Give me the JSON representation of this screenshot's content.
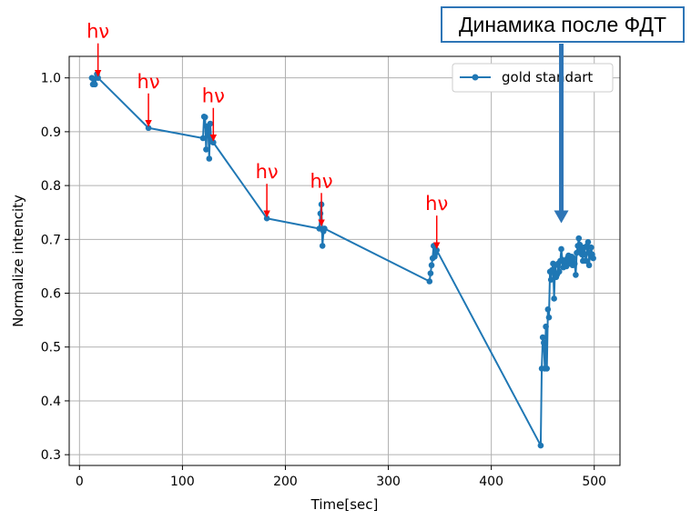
{
  "callout": {
    "text": "Динамика после ФДТ",
    "arrow_color": "#2e75b6",
    "arrow_points_to": {
      "x": 468,
      "y": 0.73
    }
  },
  "chart_data": {
    "type": "line",
    "xlabel": "Time[sec]",
    "ylabel": "Normalize intencity",
    "xlim": [
      -10,
      525
    ],
    "ylim": [
      0.28,
      1.04
    ],
    "xticks": [
      0,
      100,
      200,
      300,
      400,
      500
    ],
    "yticks": [
      0.3,
      0.4,
      0.5,
      0.6,
      0.7,
      0.8,
      0.9,
      1.0
    ],
    "xtick_labels": [
      "0",
      "100",
      "200",
      "300",
      "400",
      "500"
    ],
    "ytick_labels": [
      "0.3",
      "0.4",
      "0.5",
      "0.6",
      "0.7",
      "0.8",
      "0.9",
      "1.0"
    ],
    "grid": true,
    "legend": {
      "location": "top-right",
      "entries": [
        "gold standart"
      ]
    },
    "series": [
      {
        "name": "gold standart",
        "color": "#1f77b4",
        "marker": "circle",
        "x": [
          12,
          13,
          14,
          15,
          17,
          18,
          67,
          120,
          121,
          122,
          123,
          124,
          125,
          126,
          127,
          128,
          130,
          182,
          233,
          234,
          235,
          236,
          237,
          238,
          340,
          341,
          342,
          343,
          344,
          345,
          346,
          347,
          448,
          449,
          450,
          451,
          452,
          453,
          454,
          455,
          456,
          457,
          458,
          459,
          460,
          461,
          462,
          463,
          464,
          465,
          466,
          467,
          468,
          469,
          470,
          471,
          472,
          473,
          474,
          475,
          476,
          477,
          478,
          479,
          480,
          481,
          482,
          483,
          484,
          485,
          486,
          487,
          488,
          489,
          490,
          491,
          492,
          493,
          494,
          495,
          496,
          497,
          498,
          499
        ],
        "values": [
          1.0,
          0.988,
          0.998,
          0.988,
          1.007,
          1.0,
          0.907,
          0.888,
          0.928,
          0.927,
          0.867,
          0.91,
          0.905,
          0.85,
          0.915,
          0.882,
          0.88,
          0.739,
          0.72,
          0.748,
          0.765,
          0.688,
          0.715,
          0.72,
          0.622,
          0.637,
          0.652,
          0.665,
          0.688,
          0.668,
          0.675,
          0.68,
          0.317,
          0.46,
          0.518,
          0.508,
          0.46,
          0.538,
          0.46,
          0.57,
          0.555,
          0.64,
          0.625,
          0.643,
          0.655,
          0.59,
          0.652,
          0.63,
          0.635,
          0.655,
          0.64,
          0.66,
          0.682,
          0.662,
          0.648,
          0.654,
          0.66,
          0.65,
          0.665,
          0.67,
          0.655,
          0.66,
          0.668,
          0.652,
          0.665,
          0.655,
          0.634,
          0.675,
          0.688,
          0.702,
          0.69,
          0.68,
          0.672,
          0.66,
          0.685,
          0.672,
          0.66,
          0.688,
          0.695,
          0.652,
          0.675,
          0.685,
          0.672,
          0.665
        ]
      }
    ],
    "annotations": [
      {
        "text": "hν",
        "arrow_tip": {
          "x": 18,
          "y": 1.0
        },
        "color": "#ff0000"
      },
      {
        "text": "hν",
        "arrow_tip": {
          "x": 67,
          "y": 0.907
        },
        "color": "#ff0000"
      },
      {
        "text": "hν",
        "arrow_tip": {
          "x": 130,
          "y": 0.88
        },
        "color": "#ff0000"
      },
      {
        "text": "hν",
        "arrow_tip": {
          "x": 182,
          "y": 0.739
        },
        "color": "#ff0000"
      },
      {
        "text": "hν",
        "arrow_tip": {
          "x": 235,
          "y": 0.722
        },
        "color": "#ff0000"
      },
      {
        "text": "hν",
        "arrow_tip": {
          "x": 347,
          "y": 0.68
        },
        "color": "#ff0000"
      }
    ]
  }
}
